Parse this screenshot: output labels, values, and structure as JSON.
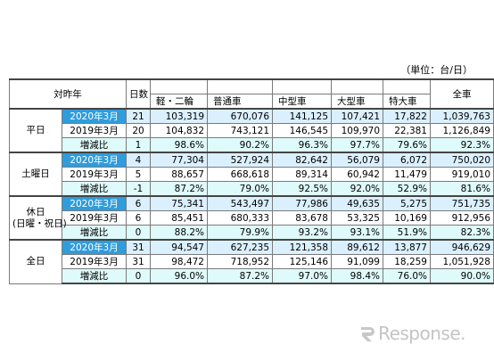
{
  "unit_label": "（単位：台/日）",
  "header": {
    "comparison": "対昨年",
    "days": "日数",
    "cat_kei": "軽・二輪",
    "cat_futsu": "普通車",
    "cat_chugata": "中型車",
    "cat_ogata": "大型車",
    "cat_tokudai": "特大車",
    "total": "全車"
  },
  "groups": [
    {
      "label": "平日",
      "rows": [
        {
          "period": "2020年3月",
          "days": "21",
          "kei": "103,319",
          "futsu": "670,076",
          "chugata": "141,125",
          "ogata": "107,421",
          "tokudai": "17,822",
          "total": "1,039,763"
        },
        {
          "period": "2019年3月",
          "days": "20",
          "kei": "104,832",
          "futsu": "743,121",
          "chugata": "146,545",
          "ogata": "109,970",
          "tokudai": "22,381",
          "total": "1,126,849"
        },
        {
          "period": "増減比",
          "days": "1",
          "kei": "98.6%",
          "futsu": "90.2%",
          "chugata": "96.3%",
          "ogata": "97.7%",
          "tokudai": "79.6%",
          "total": "92.3%"
        }
      ]
    },
    {
      "label": "土曜日",
      "rows": [
        {
          "period": "2020年3月",
          "days": "4",
          "kei": "77,304",
          "futsu": "527,924",
          "chugata": "82,642",
          "ogata": "56,079",
          "tokudai": "6,072",
          "total": "750,020"
        },
        {
          "period": "2019年3月",
          "days": "5",
          "kei": "88,657",
          "futsu": "668,618",
          "chugata": "89,314",
          "ogata": "60,942",
          "tokudai": "11,479",
          "total": "919,010"
        },
        {
          "period": "増減比",
          "days": "-1",
          "kei": "87.2%",
          "futsu": "79.0%",
          "chugata": "92.5%",
          "ogata": "92.0%",
          "tokudai": "52.9%",
          "total": "81.6%"
        }
      ]
    },
    {
      "label": "休日",
      "label2": "(日曜・祝日)",
      "rows": [
        {
          "period": "2020年3月",
          "days": "6",
          "kei": "75,341",
          "futsu": "543,497",
          "chugata": "77,986",
          "ogata": "49,635",
          "tokudai": "5,275",
          "total": "751,735"
        },
        {
          "period": "2019年3月",
          "days": "6",
          "kei": "85,451",
          "futsu": "680,333",
          "chugata": "83,678",
          "ogata": "53,325",
          "tokudai": "10,169",
          "total": "912,956"
        },
        {
          "period": "増減比",
          "days": "0",
          "kei": "88.2%",
          "futsu": "79.9%",
          "chugata": "93.2%",
          "ogata": "93.1%",
          "tokudai": "51.9%",
          "total": "82.3%"
        }
      ]
    },
    {
      "label": "全日",
      "rows": [
        {
          "period": "2020年3月",
          "days": "31",
          "kei": "94,547",
          "futsu": "627,235",
          "chugata": "121,358",
          "ogata": "89,612",
          "tokudai": "13,877",
          "total": "946,629"
        },
        {
          "period": "2019年3月",
          "days": "31",
          "kei": "98,472",
          "futsu": "718,952",
          "chugata": "125,146",
          "ogata": "91,099",
          "tokudai": "18,259",
          "total": "1,051,928"
        },
        {
          "period": "増減比",
          "days": "0",
          "kei": "96.0%",
          "futsu": "87.2%",
          "chugata": "97.0%",
          "ogata": "98.4%",
          "tokudai": "76.0%",
          "total": "90.0%"
        }
      ]
    }
  ],
  "watermark": "Response."
}
